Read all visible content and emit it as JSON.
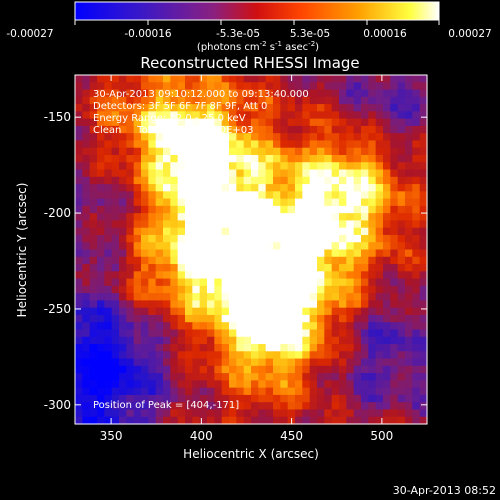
{
  "colorbar": {
    "ticks": [
      "-0.00027",
      "-0.00016",
      "-5.3e-05",
      "5.3e-05",
      "0.00016",
      "0.00027"
    ],
    "units_main": "(photons cm",
    "units_exp1": "-2",
    "units_mid": " s",
    "units_exp2": "-1",
    "units_mid2": " asec",
    "units_exp3": "-2",
    "units_end": ")",
    "colormap": "rainbow-to-hot (blue-purple-red-orange-yellow-white)"
  },
  "chart_data": {
    "type": "heatmap",
    "title": "Reconstructed RHESSI Image",
    "xlabel": "Heliocentric X (arcsec)",
    "ylabel": "Heliocentric Y (arcsec)",
    "xlim": [
      330,
      525
    ],
    "ylim": [
      -310,
      -128
    ],
    "xticks": [
      350,
      400,
      450,
      500
    ],
    "yticks": [
      -150,
      -200,
      -250,
      -300
    ],
    "value_range": [
      -0.00027,
      0.00027
    ],
    "peak": [
      404,
      -171
    ],
    "annotations": [
      "30-Apr-2013 09:10:12.000 to 09:13:40.000",
      "Detectors: 3F 5F 6F 7F 8F 9F, Att 0",
      "Energy Range: 12.0 - 25.0 keV",
      "Clean     Total counts: 4.10E+03"
    ],
    "peak_label": "Position of Peak = [404,-171]",
    "bright_regions": [
      {
        "x": 404,
        "y": -171,
        "level": 0.95
      },
      {
        "x": 420,
        "y": -228,
        "level": 0.8
      },
      {
        "x": 440,
        "y": -262,
        "level": 0.95
      },
      {
        "x": 390,
        "y": -210,
        "level": 0.65
      },
      {
        "x": 455,
        "y": -200,
        "level": 0.6
      },
      {
        "x": 485,
        "y": -185,
        "level": 0.75
      },
      {
        "x": 375,
        "y": -155,
        "level": 0.55
      },
      {
        "x": 365,
        "y": -240,
        "level": 0.45
      },
      {
        "x": 470,
        "y": -235,
        "level": 0.55
      }
    ],
    "dark_regions": [
      {
        "x": 345,
        "y": -265,
        "level": -0.8
      },
      {
        "x": 340,
        "y": -300,
        "level": -0.6
      },
      {
        "x": 500,
        "y": -270,
        "level": -0.55
      },
      {
        "x": 505,
        "y": -140,
        "level": -0.45
      },
      {
        "x": 350,
        "y": -200,
        "level": -0.4
      }
    ]
  },
  "footer": {
    "timestamp": "30-Apr-2013 08:52"
  }
}
